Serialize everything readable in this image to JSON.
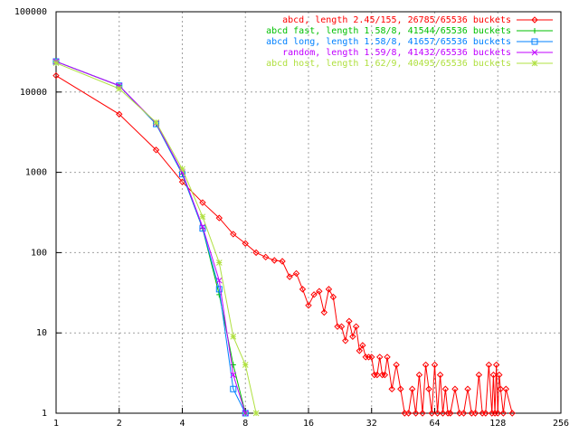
{
  "chart_data": {
    "type": "line",
    "xscale": "log2",
    "yscale": "log10",
    "grid": true,
    "legend": "top-right",
    "xlim": [
      1,
      256
    ],
    "ylim": [
      1,
      100000
    ],
    "xticks": [
      1,
      2,
      4,
      8,
      16,
      32,
      64,
      128,
      256
    ],
    "yticks": [
      1,
      10,
      100,
      1000,
      10000,
      100000
    ],
    "series": [
      {
        "name": "abcd, length 2.45/155, 26785/65536 buckets",
        "color": "#ff0000",
        "marker": "diamond",
        "x": [
          1,
          2,
          3,
          4,
          5,
          6,
          7,
          8,
          9,
          10,
          11,
          12,
          13,
          14,
          15,
          16,
          17,
          18,
          19,
          20,
          21,
          22,
          23,
          24,
          25,
          26,
          27,
          28,
          29,
          30,
          31,
          32,
          33,
          34,
          35,
          36,
          37,
          38,
          40,
          42,
          44,
          46,
          48,
          50,
          52,
          54,
          56,
          58,
          60,
          62,
          64,
          66,
          68,
          70,
          72,
          74,
          76,
          80,
          84,
          88,
          92,
          96,
          100,
          104,
          108,
          112,
          116,
          120,
          122,
          124,
          126,
          128,
          130,
          132,
          136,
          140,
          150
        ],
        "values": [
          16000,
          5300,
          1900,
          760,
          420,
          270,
          170,
          130,
          100,
          88,
          80,
          78,
          50,
          55,
          35,
          22,
          30,
          33,
          18,
          35,
          28,
          12,
          12,
          8,
          14,
          9,
          12,
          6,
          7,
          5,
          5,
          5,
          3,
          3,
          5,
          3,
          3,
          5,
          2,
          4,
          2,
          1,
          1,
          2,
          1,
          3,
          1,
          4,
          2,
          1,
          4,
          1,
          3,
          1,
          2,
          1,
          1,
          2,
          1,
          1,
          2,
          1,
          1,
          3,
          1,
          1,
          4,
          1,
          3,
          1,
          4,
          1,
          3,
          2,
          1,
          2,
          1
        ]
      },
      {
        "name": "abcd fast, length 1.58/8, 41544/65536 buckets",
        "color": "#00c000",
        "marker": "plus",
        "x": [
          1,
          2,
          3,
          4,
          5,
          6,
          7,
          8
        ],
        "values": [
          24000,
          12000,
          4000,
          950,
          200,
          30,
          4,
          1
        ]
      },
      {
        "name": "abcd long, length 1.58/8, 41657/65536 buckets",
        "color": "#0080ff",
        "marker": "square",
        "x": [
          1,
          2,
          3,
          4,
          5,
          6,
          7,
          8
        ],
        "values": [
          24000,
          12000,
          4000,
          950,
          200,
          35,
          2,
          1
        ]
      },
      {
        "name": "random, length 1.59/8, 41432/65536 buckets",
        "color": "#c000ff",
        "marker": "cross",
        "x": [
          1,
          2,
          3,
          4,
          5,
          6,
          7,
          8
        ],
        "values": [
          24000,
          12000,
          4100,
          1000,
          210,
          45,
          3,
          1
        ]
      },
      {
        "name": "abcd host, length 1.62/9, 40495/65536 buckets",
        "color": "#b0e040",
        "marker": "star",
        "x": [
          1,
          2,
          3,
          4,
          5,
          6,
          7,
          8,
          9
        ],
        "values": [
          23000,
          11000,
          4200,
          1100,
          280,
          75,
          9,
          4,
          1
        ]
      }
    ]
  }
}
